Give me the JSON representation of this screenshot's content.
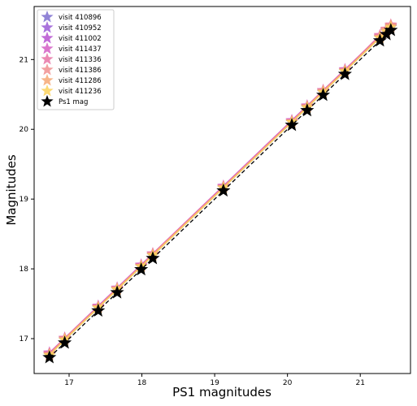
{
  "chart_data": {
    "type": "line",
    "x_label": "PS1 magnitudes",
    "y_label": "Magnitudes",
    "x": [
      16.73,
      16.94,
      17.4,
      17.66,
      17.99,
      18.15,
      19.12,
      20.06,
      20.27,
      20.49,
      20.79,
      21.27,
      21.36,
      21.42
    ],
    "series": [
      {
        "name": "visit 410896",
        "color": "#7e6fcf",
        "linestyle": "solid",
        "values": [
          16.77,
          16.98,
          17.44,
          17.7,
          18.03,
          18.19,
          19.16,
          20.1,
          20.31,
          20.53,
          20.83,
          21.31,
          21.4,
          21.46
        ]
      },
      {
        "name": "visit 410952",
        "color": "#9a5bd6",
        "linestyle": "solid",
        "values": [
          16.78,
          16.99,
          17.45,
          17.71,
          18.04,
          18.2,
          19.17,
          20.11,
          20.32,
          20.54,
          20.84,
          21.32,
          21.41,
          21.47
        ]
      },
      {
        "name": "visit 411002",
        "color": "#b651d0",
        "linestyle": "solid",
        "values": [
          16.79,
          17.0,
          17.46,
          17.72,
          18.05,
          18.21,
          19.18,
          20.12,
          20.33,
          20.55,
          20.85,
          21.33,
          21.42,
          21.48
        ]
      },
      {
        "name": "visit 411437",
        "color": "#d35ec4",
        "linestyle": "solid",
        "values": [
          16.8,
          17.01,
          17.47,
          17.73,
          18.06,
          18.22,
          19.19,
          20.13,
          20.34,
          20.56,
          20.86,
          21.34,
          21.43,
          21.49
        ]
      },
      {
        "name": "visit 411336",
        "color": "#e774a6",
        "linestyle": "solid",
        "values": [
          16.79,
          17.01,
          17.46,
          17.72,
          18.05,
          18.22,
          19.18,
          20.12,
          20.33,
          20.56,
          20.85,
          21.35,
          21.44,
          21.5
        ]
      },
      {
        "name": "visit 411386",
        "color": "#f08f8f",
        "linestyle": "solid",
        "values": [
          16.78,
          17.0,
          17.45,
          17.72,
          18.04,
          18.21,
          19.17,
          20.11,
          20.33,
          20.55,
          20.84,
          21.33,
          21.43,
          21.49
        ]
      },
      {
        "name": "visit 411286",
        "color": "#f6a874",
        "linestyle": "solid",
        "values": [
          16.77,
          16.99,
          17.45,
          17.71,
          18.04,
          18.2,
          19.17,
          20.11,
          20.32,
          20.54,
          20.84,
          21.32,
          21.42,
          21.48
        ]
      },
      {
        "name": "visit 411236",
        "color": "#fbd25c",
        "linestyle": "solid",
        "values": [
          16.76,
          16.98,
          17.44,
          17.7,
          18.03,
          18.19,
          19.16,
          20.1,
          20.31,
          20.53,
          20.83,
          21.31,
          21.4,
          21.46
        ]
      },
      {
        "name": "Ps1 mag",
        "color": "#000000",
        "linestyle": "dashed",
        "values": [
          16.73,
          16.94,
          17.4,
          17.66,
          17.99,
          18.15,
          19.12,
          20.06,
          20.27,
          20.49,
          20.79,
          21.27,
          21.36,
          21.42
        ]
      }
    ],
    "xlim": [
      16.52,
      21.69
    ],
    "ylim": [
      16.5,
      21.76
    ],
    "xticks": [
      17,
      18,
      19,
      20,
      21
    ],
    "yticks": [
      17,
      18,
      19,
      20,
      21
    ],
    "legend": "upper left",
    "grid": false
  }
}
